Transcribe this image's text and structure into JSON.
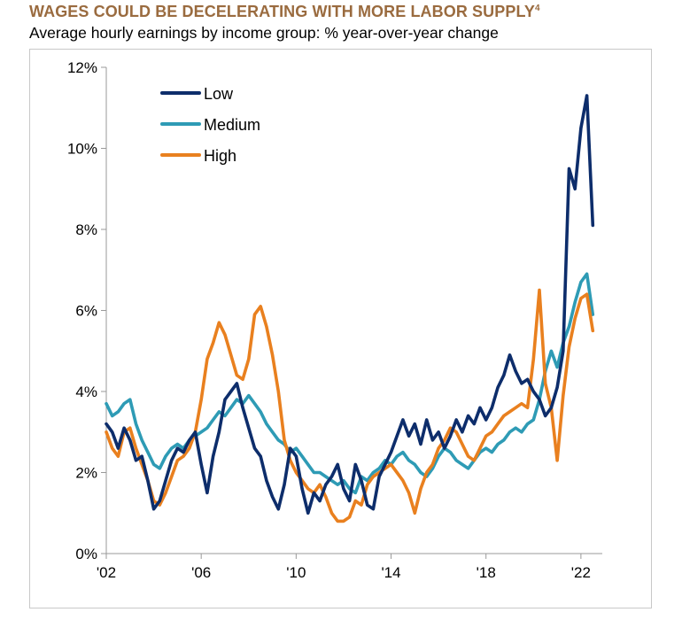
{
  "header": {
    "title": "WAGES COULD BE DECELERATING WITH MORE LABOR SUPPLY",
    "title_footnote": "4",
    "subtitle": "Average hourly earnings by income group: % year-over-year change"
  },
  "colors": {
    "low": "#0d2d6b",
    "medium": "#2e9bb5",
    "high": "#e9801f",
    "title": "#9a6b3f",
    "axis": "#999999"
  },
  "chart_data": {
    "type": "line",
    "title": "WAGES COULD BE DECELERATING WITH MORE LABOR SUPPLY",
    "subtitle": "Average hourly earnings by income group: % year-over-year change",
    "xlabel": "",
    "ylabel": "",
    "xlim": [
      2002,
      2022.9
    ],
    "ylim": [
      0,
      12
    ],
    "y_ticks": [
      0,
      2,
      4,
      6,
      8,
      10,
      12
    ],
    "y_tick_labels": [
      "0%",
      "2%",
      "4%",
      "6%",
      "8%",
      "10%",
      "12%"
    ],
    "x_ticks": [
      2002,
      2006,
      2010,
      2014,
      2018,
      2022
    ],
    "x_tick_labels": [
      "'02",
      "'06",
      "'10",
      "'14",
      "'18",
      "'22"
    ],
    "grid": false,
    "legend_position": "top-left",
    "series": [
      {
        "name": "Low",
        "color": "#0d2d6b",
        "x": [
          2002.0,
          2002.25,
          2002.5,
          2002.75,
          2003.0,
          2003.25,
          2003.5,
          2003.75,
          2004.0,
          2004.25,
          2004.5,
          2004.75,
          2005.0,
          2005.25,
          2005.5,
          2005.75,
          2006.0,
          2006.25,
          2006.5,
          2006.75,
          2007.0,
          2007.25,
          2007.5,
          2007.75,
          2008.0,
          2008.25,
          2008.5,
          2008.75,
          2009.0,
          2009.25,
          2009.5,
          2009.75,
          2010.0,
          2010.25,
          2010.5,
          2010.75,
          2011.0,
          2011.25,
          2011.5,
          2011.75,
          2012.0,
          2012.25,
          2012.5,
          2012.75,
          2013.0,
          2013.25,
          2013.5,
          2013.75,
          2014.0,
          2014.25,
          2014.5,
          2014.75,
          2015.0,
          2015.25,
          2015.5,
          2015.75,
          2016.0,
          2016.25,
          2016.5,
          2016.75,
          2017.0,
          2017.25,
          2017.5,
          2017.75,
          2018.0,
          2018.25,
          2018.5,
          2018.75,
          2019.0,
          2019.25,
          2019.5,
          2019.75,
          2020.0,
          2020.25,
          2020.5,
          2020.75,
          2021.0,
          2021.25,
          2021.5,
          2021.75,
          2022.0,
          2022.25,
          2022.5
        ],
        "values": [
          3.2,
          3.0,
          2.6,
          3.1,
          2.8,
          2.3,
          2.4,
          1.8,
          1.1,
          1.3,
          1.8,
          2.3,
          2.6,
          2.5,
          2.8,
          3.0,
          2.2,
          1.5,
          2.4,
          3.0,
          3.8,
          4.0,
          4.2,
          3.6,
          3.1,
          2.6,
          2.4,
          1.8,
          1.4,
          1.1,
          1.7,
          2.6,
          2.4,
          1.6,
          1.0,
          1.5,
          1.3,
          1.7,
          1.9,
          2.2,
          1.6,
          1.3,
          2.2,
          1.8,
          1.2,
          1.1,
          1.9,
          2.2,
          2.5,
          2.9,
          3.3,
          2.9,
          3.2,
          2.7,
          3.3,
          2.8,
          3.0,
          2.6,
          2.9,
          3.3,
          3.0,
          3.4,
          3.2,
          3.6,
          3.3,
          3.6,
          4.1,
          4.4,
          4.9,
          4.5,
          4.2,
          4.3,
          4.0,
          3.8,
          3.4,
          3.6,
          4.1,
          5.0,
          9.5,
          9.0,
          10.5,
          11.3,
          8.1
        ]
      },
      {
        "name": "Medium",
        "color": "#2e9bb5",
        "x": [
          2002.0,
          2002.25,
          2002.5,
          2002.75,
          2003.0,
          2003.25,
          2003.5,
          2003.75,
          2004.0,
          2004.25,
          2004.5,
          2004.75,
          2005.0,
          2005.25,
          2005.5,
          2005.75,
          2006.0,
          2006.25,
          2006.5,
          2006.75,
          2007.0,
          2007.25,
          2007.5,
          2007.75,
          2008.0,
          2008.25,
          2008.5,
          2008.75,
          2009.0,
          2009.25,
          2009.5,
          2009.75,
          2010.0,
          2010.25,
          2010.5,
          2010.75,
          2011.0,
          2011.25,
          2011.5,
          2011.75,
          2012.0,
          2012.25,
          2012.5,
          2012.75,
          2013.0,
          2013.25,
          2013.5,
          2013.75,
          2014.0,
          2014.25,
          2014.5,
          2014.75,
          2015.0,
          2015.25,
          2015.5,
          2015.75,
          2016.0,
          2016.25,
          2016.5,
          2016.75,
          2017.0,
          2017.25,
          2017.5,
          2017.75,
          2018.0,
          2018.25,
          2018.5,
          2018.75,
          2019.0,
          2019.25,
          2019.5,
          2019.75,
          2020.0,
          2020.25,
          2020.5,
          2020.75,
          2021.0,
          2021.25,
          2021.5,
          2021.75,
          2022.0,
          2022.25,
          2022.5
        ],
        "values": [
          3.7,
          3.4,
          3.5,
          3.7,
          3.8,
          3.2,
          2.8,
          2.5,
          2.2,
          2.1,
          2.4,
          2.6,
          2.7,
          2.6,
          2.8,
          2.9,
          3.0,
          3.1,
          3.3,
          3.5,
          3.4,
          3.6,
          3.8,
          3.7,
          3.9,
          3.7,
          3.5,
          3.2,
          3.0,
          2.8,
          2.7,
          2.5,
          2.6,
          2.4,
          2.2,
          2.0,
          2.0,
          1.9,
          1.8,
          1.7,
          1.8,
          1.6,
          1.5,
          1.9,
          1.8,
          2.0,
          2.1,
          2.3,
          2.2,
          2.4,
          2.5,
          2.3,
          2.2,
          2.0,
          1.9,
          2.1,
          2.4,
          2.6,
          2.5,
          2.3,
          2.2,
          2.1,
          2.3,
          2.5,
          2.6,
          2.5,
          2.7,
          2.8,
          3.0,
          3.1,
          3.0,
          3.2,
          3.3,
          3.8,
          4.5,
          5.0,
          4.6,
          5.2,
          5.6,
          6.2,
          6.7,
          6.9,
          5.9
        ]
      },
      {
        "name": "High",
        "color": "#e9801f",
        "x": [
          2002.0,
          2002.25,
          2002.5,
          2002.75,
          2003.0,
          2003.25,
          2003.5,
          2003.75,
          2004.0,
          2004.25,
          2004.5,
          2004.75,
          2005.0,
          2005.25,
          2005.5,
          2005.75,
          2006.0,
          2006.25,
          2006.5,
          2006.75,
          2007.0,
          2007.25,
          2007.5,
          2007.75,
          2008.0,
          2008.25,
          2008.5,
          2008.75,
          2009.0,
          2009.25,
          2009.5,
          2009.75,
          2010.0,
          2010.25,
          2010.5,
          2010.75,
          2011.0,
          2011.25,
          2011.5,
          2011.75,
          2012.0,
          2012.25,
          2012.5,
          2012.75,
          2013.0,
          2013.25,
          2013.5,
          2013.75,
          2014.0,
          2014.25,
          2014.5,
          2014.75,
          2015.0,
          2015.25,
          2015.5,
          2015.75,
          2016.0,
          2016.25,
          2016.5,
          2016.75,
          2017.0,
          2017.25,
          2017.5,
          2017.75,
          2018.0,
          2018.25,
          2018.5,
          2018.75,
          2019.0,
          2019.25,
          2019.5,
          2019.75,
          2020.0,
          2020.25,
          2020.5,
          2020.75,
          2021.0,
          2021.25,
          2021.5,
          2021.75,
          2022.0,
          2022.25,
          2022.5
        ],
        "values": [
          3.0,
          2.6,
          2.4,
          3.0,
          3.1,
          2.6,
          2.2,
          1.8,
          1.3,
          1.2,
          1.5,
          1.9,
          2.3,
          2.4,
          2.6,
          3.0,
          3.8,
          4.8,
          5.2,
          5.7,
          5.4,
          4.9,
          4.4,
          4.3,
          4.8,
          5.9,
          6.1,
          5.6,
          4.9,
          4.0,
          2.8,
          2.3,
          2.0,
          1.8,
          1.6,
          1.5,
          1.7,
          1.4,
          1.0,
          0.8,
          0.8,
          0.9,
          1.3,
          1.2,
          1.7,
          1.9,
          2.0,
          2.1,
          2.2,
          2.0,
          1.8,
          1.5,
          1.0,
          1.6,
          2.0,
          2.2,
          2.6,
          2.8,
          3.1,
          3.0,
          2.7,
          2.4,
          2.3,
          2.6,
          2.9,
          3.0,
          3.2,
          3.4,
          3.5,
          3.6,
          3.7,
          3.6,
          4.8,
          6.5,
          4.2,
          3.6,
          2.3,
          3.9,
          5.1,
          5.8,
          6.3,
          6.4,
          5.5
        ]
      }
    ]
  }
}
